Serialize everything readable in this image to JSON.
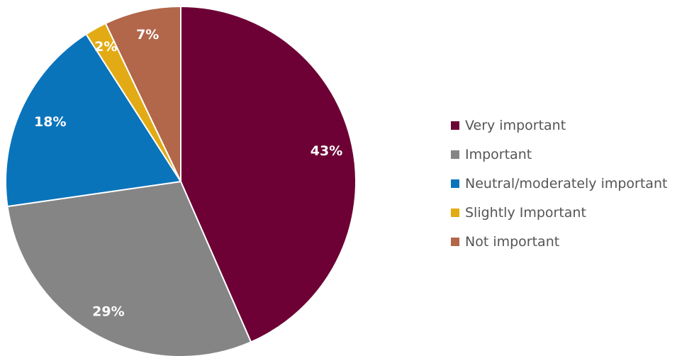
{
  "chart_data": {
    "type": "pie",
    "categories": [
      "Very important",
      "Important",
      "Neutral/moderately important",
      "Slightly Important",
      "Not important"
    ],
    "values": [
      43,
      29,
      18,
      2,
      7
    ],
    "data_labels": [
      "43%",
      "29%",
      "18%",
      "2%",
      "7%"
    ],
    "colors": [
      "#6d0034",
      "#858585",
      "#0a74bb",
      "#e2ab15",
      "#b2664a"
    ],
    "start": "top",
    "direction": "clockwise",
    "legend_position": "right"
  }
}
